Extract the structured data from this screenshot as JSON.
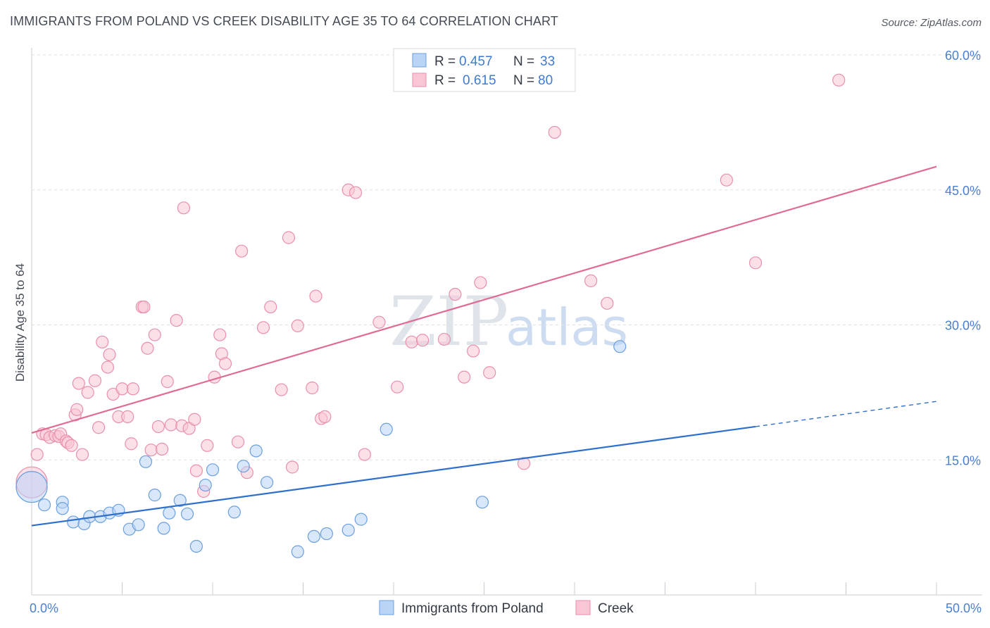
{
  "title": "IMMIGRANTS FROM POLAND VS CREEK DISABILITY AGE 35 TO 64 CORRELATION CHART",
  "source": "Source: ZipAtlas.com",
  "watermark": {
    "part1": "ZIP",
    "part2": "atlas"
  },
  "legend": {
    "rows": [
      {
        "r_label": "R =",
        "r_value": "0.457",
        "n_label": "N =",
        "n_value": "33"
      },
      {
        "r_label": "R =",
        "r_value": "0.615",
        "n_label": "N =",
        "n_value": "80"
      }
    ]
  },
  "bottom_legend": {
    "series1": "Immigrants from Poland",
    "series2": "Creek"
  },
  "colors": {
    "poland_fill": "#b9d4f5",
    "poland_stroke": "#6b9fe0",
    "poland_line": "#2f70cc",
    "creek_fill": "#f8c6d5",
    "creek_stroke": "#ea8fab",
    "creek_line": "#e06b94",
    "grid": "#dde0e5",
    "tick_text": "#4a7fcf"
  },
  "chart_data": {
    "type": "scatter",
    "title": "IMMIGRANTS FROM POLAND VS CREEK DISABILITY AGE 35 TO 64 CORRELATION CHART",
    "xlabel": "",
    "ylabel": "Disability Age 35 to 64",
    "xlim": [
      0,
      50
    ],
    "ylim": [
      0,
      60
    ],
    "x_tick_labels": [
      "0.0%",
      "50.0%"
    ],
    "y_ticks": [
      15,
      30,
      45,
      60
    ],
    "y_tick_labels": [
      "15.0%",
      "30.0%",
      "45.0%",
      "60.0%"
    ],
    "grid": true,
    "series": [
      {
        "name": "Immigrants from Poland",
        "R": 0.457,
        "N": 33,
        "trend": {
          "x0": 0,
          "y0": 7.7,
          "x1": 40,
          "y1": 18.7,
          "dash_to_x": 50,
          "dash_to_y": 21.5
        },
        "points": [
          [
            0.0,
            12.0
          ],
          [
            0.7,
            10.0
          ],
          [
            1.7,
            10.3
          ],
          [
            1.7,
            9.6
          ],
          [
            2.3,
            8.1
          ],
          [
            2.9,
            7.9
          ],
          [
            3.2,
            8.7
          ],
          [
            3.8,
            8.7
          ],
          [
            4.3,
            9.1
          ],
          [
            4.8,
            9.4
          ],
          [
            5.4,
            7.3
          ],
          [
            5.9,
            7.8
          ],
          [
            6.3,
            14.8
          ],
          [
            6.8,
            11.1
          ],
          [
            7.3,
            7.4
          ],
          [
            7.6,
            9.1
          ],
          [
            8.2,
            10.5
          ],
          [
            8.6,
            9.0
          ],
          [
            9.1,
            5.4
          ],
          [
            9.6,
            12.2
          ],
          [
            10.0,
            13.9
          ],
          [
            11.2,
            9.2
          ],
          [
            11.7,
            14.3
          ],
          [
            12.4,
            16.0
          ],
          [
            13.0,
            12.5
          ],
          [
            14.7,
            4.8
          ],
          [
            15.6,
            6.5
          ],
          [
            16.3,
            6.8
          ],
          [
            17.5,
            7.2
          ],
          [
            18.2,
            8.4
          ],
          [
            19.6,
            18.4
          ],
          [
            24.9,
            10.3
          ],
          [
            32.5,
            27.6
          ]
        ]
      },
      {
        "name": "Creek",
        "R": 0.615,
        "N": 80,
        "trend": {
          "x0": 0,
          "y0": 18.0,
          "x1": 50,
          "y1": 47.6
        },
        "points": [
          [
            0.0,
            12.5
          ],
          [
            0.3,
            15.6
          ],
          [
            0.6,
            17.9
          ],
          [
            0.8,
            17.8
          ],
          [
            1.0,
            17.5
          ],
          [
            1.3,
            17.7
          ],
          [
            1.5,
            17.6
          ],
          [
            1.6,
            17.9
          ],
          [
            1.9,
            17.1
          ],
          [
            2.0,
            16.9
          ],
          [
            2.2,
            16.6
          ],
          [
            2.4,
            20.0
          ],
          [
            2.5,
            20.6
          ],
          [
            2.6,
            23.5
          ],
          [
            2.8,
            15.6
          ],
          [
            3.1,
            22.5
          ],
          [
            3.5,
            23.8
          ],
          [
            3.7,
            18.6
          ],
          [
            3.9,
            28.1
          ],
          [
            4.2,
            25.3
          ],
          [
            4.3,
            26.7
          ],
          [
            4.5,
            22.3
          ],
          [
            4.8,
            19.8
          ],
          [
            5.0,
            22.9
          ],
          [
            5.3,
            19.8
          ],
          [
            5.5,
            16.8
          ],
          [
            5.6,
            22.9
          ],
          [
            6.1,
            32.0
          ],
          [
            6.2,
            32.0
          ],
          [
            6.4,
            27.4
          ],
          [
            6.6,
            16.1
          ],
          [
            6.8,
            28.9
          ],
          [
            7.0,
            18.7
          ],
          [
            7.2,
            16.2
          ],
          [
            7.5,
            23.7
          ],
          [
            7.7,
            18.9
          ],
          [
            8.0,
            30.5
          ],
          [
            8.3,
            18.8
          ],
          [
            8.4,
            43.0
          ],
          [
            8.7,
            18.5
          ],
          [
            9.0,
            19.5
          ],
          [
            9.1,
            13.8
          ],
          [
            9.5,
            11.5
          ],
          [
            9.7,
            16.6
          ],
          [
            10.1,
            24.2
          ],
          [
            10.4,
            28.9
          ],
          [
            10.5,
            26.8
          ],
          [
            10.7,
            25.7
          ],
          [
            11.4,
            17.0
          ],
          [
            11.6,
            38.2
          ],
          [
            11.9,
            13.6
          ],
          [
            12.8,
            29.7
          ],
          [
            13.2,
            32.0
          ],
          [
            13.8,
            22.8
          ],
          [
            14.2,
            39.7
          ],
          [
            14.4,
            14.2
          ],
          [
            14.7,
            29.9
          ],
          [
            15.5,
            23.0
          ],
          [
            15.7,
            33.2
          ],
          [
            16.0,
            19.6
          ],
          [
            16.2,
            19.8
          ],
          [
            17.5,
            45.0
          ],
          [
            17.9,
            44.7
          ],
          [
            18.4,
            15.6
          ],
          [
            19.2,
            30.3
          ],
          [
            20.2,
            23.1
          ],
          [
            21.0,
            28.1
          ],
          [
            21.6,
            28.3
          ],
          [
            22.8,
            28.4
          ],
          [
            23.4,
            33.4
          ],
          [
            23.9,
            24.2
          ],
          [
            24.4,
            27.1
          ],
          [
            24.8,
            34.7
          ],
          [
            25.3,
            24.7
          ],
          [
            27.2,
            14.6
          ],
          [
            28.9,
            51.4
          ],
          [
            30.9,
            34.9
          ],
          [
            31.8,
            32.4
          ],
          [
            38.4,
            46.1
          ],
          [
            40.0,
            36.9
          ],
          [
            44.6,
            57.2
          ]
        ]
      }
    ]
  }
}
